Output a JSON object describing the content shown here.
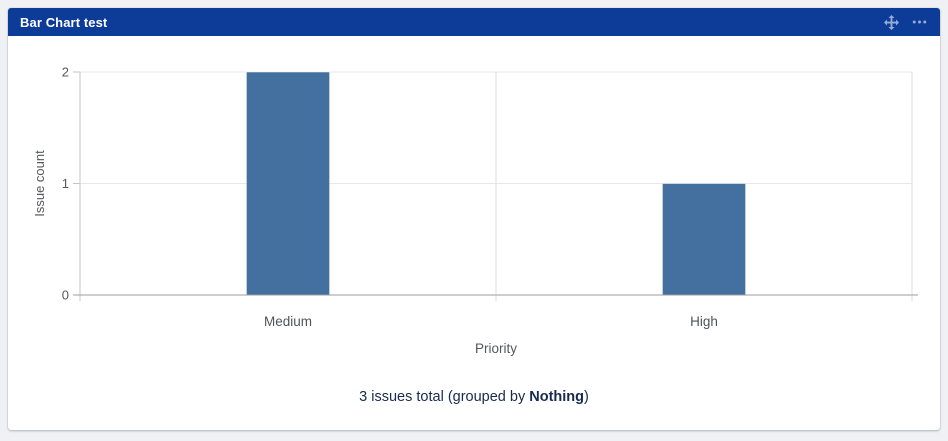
{
  "header": {
    "title": "Bar Chart test",
    "bg_color": "#0c3c97",
    "icon_color": "#98abd6",
    "icons": {
      "move": "move-icon",
      "more": "ellipsis-icon"
    }
  },
  "chart_data": {
    "type": "bar",
    "categories": [
      "Medium",
      "High"
    ],
    "values": [
      2,
      1
    ],
    "title": "",
    "xlabel": "Priority",
    "ylabel": "Issue count",
    "ylim": [
      0,
      2
    ],
    "yticks": [
      0,
      1,
      2
    ],
    "bar_color": "#4470a0",
    "grid": true,
    "legend": false
  },
  "footer": {
    "text_before": "3 issues total (grouped by ",
    "bold_text": "Nothing",
    "text_after": ")",
    "color": "#172b4d"
  }
}
